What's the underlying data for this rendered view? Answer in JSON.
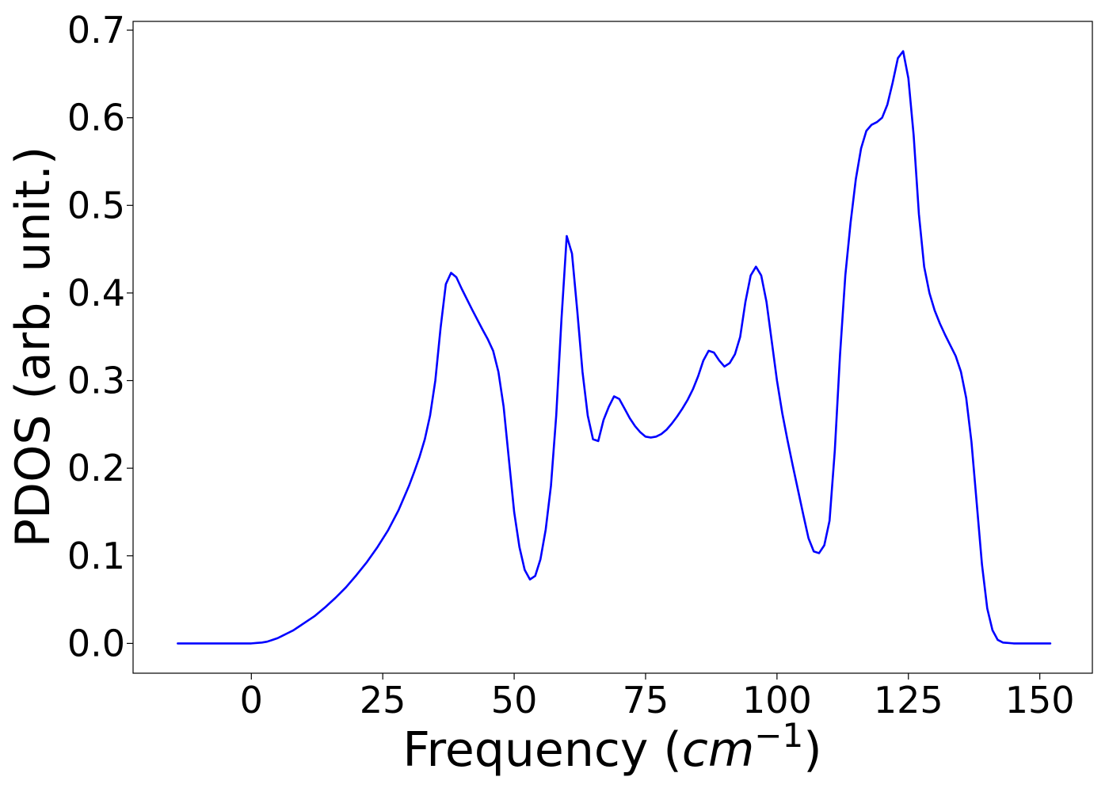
{
  "chart_data": {
    "type": "line",
    "title": "",
    "xlabel": "Frequency",
    "xlabel_prefix": "Frequency (",
    "xlabel_unit": "cm",
    "xlabel_unit_exp": "−1",
    "xlabel_suffix": ")",
    "ylabel": "PDOS (arb. unit.)",
    "xlim": [
      -22.5,
      160
    ],
    "ylim": [
      -0.034,
      0.71
    ],
    "xticks": [
      0,
      25,
      50,
      75,
      100,
      125,
      150
    ],
    "xtick_labels": [
      "0",
      "25",
      "50",
      "75",
      "100",
      "125",
      "150"
    ],
    "yticks": [
      0.0,
      0.1,
      0.2,
      0.3,
      0.4,
      0.5,
      0.6,
      0.7
    ],
    "ytick_labels": [
      "0.0",
      "0.1",
      "0.2",
      "0.3",
      "0.4",
      "0.5",
      "0.6",
      "0.7"
    ],
    "grid": false,
    "legend": false,
    "line_color": "#0000ff",
    "series": [
      {
        "x": [
          -14,
          -5,
          0,
          1,
          2,
          3,
          4,
          5,
          6,
          7,
          8,
          9,
          10,
          12,
          14,
          16,
          18,
          20,
          22,
          24,
          26,
          28,
          30,
          31,
          32,
          33,
          34,
          35,
          36,
          37,
          38,
          39,
          40,
          42,
          44,
          45,
          46,
          47,
          48,
          49,
          50,
          51,
          52,
          53,
          54,
          55,
          56,
          57,
          58,
          59,
          60,
          61,
          62,
          63,
          64,
          65,
          66,
          67,
          68,
          69,
          70,
          71,
          72,
          73,
          74,
          75,
          76,
          77,
          78,
          79,
          80,
          81,
          82,
          83,
          84,
          85,
          86,
          87,
          88,
          89,
          90,
          91,
          92,
          93,
          94,
          95,
          96,
          97,
          98,
          99,
          100,
          101,
          102,
          103,
          104,
          105,
          106,
          107,
          108,
          109,
          110,
          111,
          112,
          113,
          114,
          115,
          116,
          117,
          118,
          119,
          120,
          121,
          122,
          123,
          124,
          125,
          126,
          127,
          128,
          129,
          130,
          131,
          132,
          133,
          134,
          135,
          136,
          137,
          138,
          139,
          140,
          141,
          142,
          143,
          145,
          148,
          152
        ],
        "y": [
          0.0,
          0.0,
          0.0,
          0.0005,
          0.001,
          0.002,
          0.004,
          0.006,
          0.009,
          0.012,
          0.015,
          0.019,
          0.023,
          0.031,
          0.041,
          0.052,
          0.064,
          0.078,
          0.093,
          0.11,
          0.129,
          0.152,
          0.18,
          0.196,
          0.213,
          0.233,
          0.26,
          0.3,
          0.36,
          0.41,
          0.423,
          0.418,
          0.405,
          0.381,
          0.358,
          0.347,
          0.334,
          0.31,
          0.27,
          0.21,
          0.15,
          0.11,
          0.084,
          0.073,
          0.077,
          0.096,
          0.13,
          0.18,
          0.26,
          0.37,
          0.465,
          0.445,
          0.38,
          0.31,
          0.26,
          0.233,
          0.231,
          0.255,
          0.27,
          0.282,
          0.279,
          0.268,
          0.257,
          0.248,
          0.241,
          0.236,
          0.235,
          0.236,
          0.239,
          0.244,
          0.251,
          0.259,
          0.268,
          0.278,
          0.29,
          0.305,
          0.323,
          0.334,
          0.332,
          0.323,
          0.316,
          0.32,
          0.33,
          0.35,
          0.39,
          0.42,
          0.43,
          0.42,
          0.39,
          0.345,
          0.3,
          0.263,
          0.232,
          0.203,
          0.175,
          0.147,
          0.12,
          0.105,
          0.103,
          0.112,
          0.14,
          0.22,
          0.33,
          0.42,
          0.48,
          0.53,
          0.565,
          0.585,
          0.592,
          0.595,
          0.6,
          0.615,
          0.64,
          0.668,
          0.676,
          0.645,
          0.58,
          0.49,
          0.43,
          0.4,
          0.38,
          0.365,
          0.352,
          0.34,
          0.328,
          0.31,
          0.28,
          0.23,
          0.16,
          0.09,
          0.04,
          0.015,
          0.004,
          0.001,
          0.0,
          0.0,
          0.0
        ]
      }
    ]
  }
}
